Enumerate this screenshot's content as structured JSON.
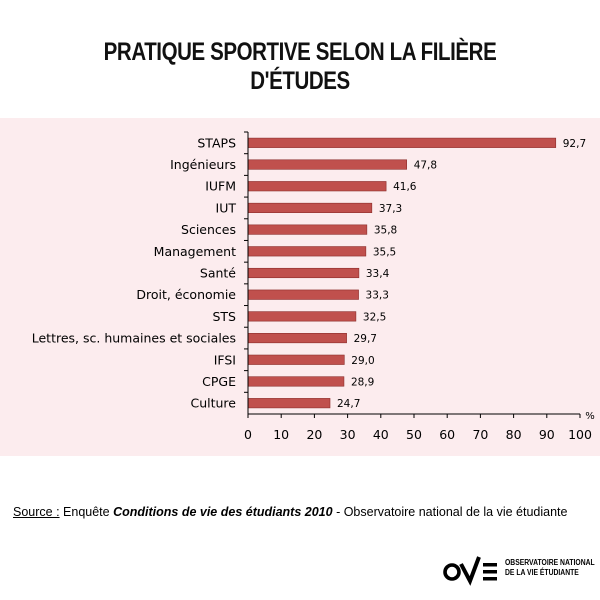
{
  "title": "PRATIQUE SPORTIVE SELON LA FILIÈRE D'ÉTUDES",
  "chart_data": {
    "type": "bar",
    "orientation": "horizontal",
    "categories": [
      "STAPS",
      "Ingénieurs",
      "IUFM",
      "IUT",
      "Sciences",
      "Management",
      "Santé",
      "Droit, économie",
      "STS",
      "Lettres, sc. humaines et sociales",
      "IFSI",
      "CPGE",
      "Culture"
    ],
    "values": [
      92.7,
      47.8,
      41.6,
      37.3,
      35.8,
      35.5,
      33.4,
      33.3,
      32.5,
      29.7,
      29.0,
      28.9,
      24.7
    ],
    "value_labels": [
      "92,7",
      "47,8",
      "41,6",
      "37,3",
      "35,8",
      "35,5",
      "33,4",
      "33,3",
      "32,5",
      "29,7",
      "29,0",
      "28,9",
      "24,7"
    ],
    "xlim": [
      0,
      100
    ],
    "xticks": [
      0,
      10,
      20,
      30,
      40,
      50,
      60,
      70,
      80,
      90,
      100
    ],
    "unit_label": "%",
    "grid": false,
    "bar_color": "#c0504d",
    "panel_color": "#fcecee"
  },
  "source": {
    "prefix": "Source :",
    "middle": " Enquête ",
    "italic": "Conditions de vie des étudiants 2010",
    "suffix": " - Observatoire national de la vie étudiante"
  },
  "logo": {
    "line1": "OBSERVATOIRE NATIONAL",
    "line2": "DE LA VIE ÉTUDIANTE"
  }
}
